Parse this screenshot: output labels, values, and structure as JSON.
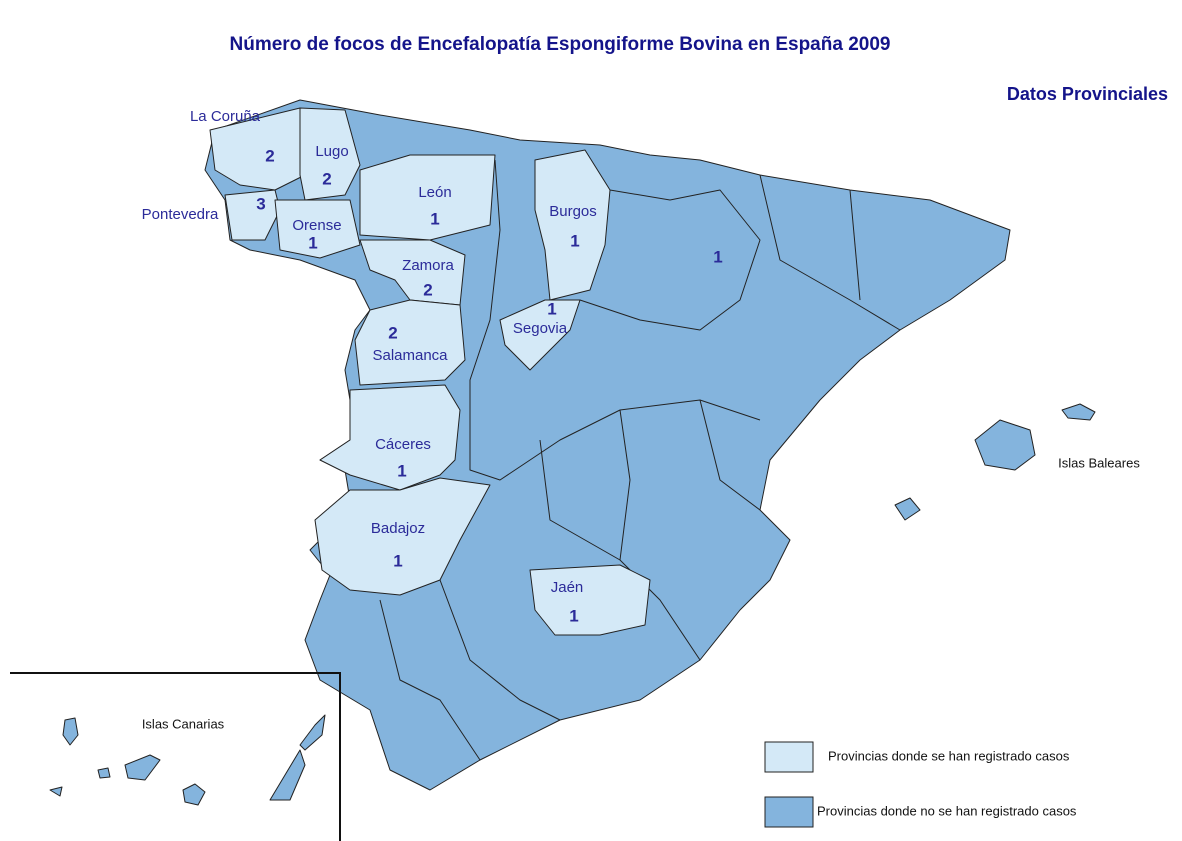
{
  "title": "Número de focos de Encefalopatía Espongiforme Bovina en España 2009",
  "subtitle": "Datos Provinciales",
  "regions": [
    {
      "name": "La Coruña",
      "count": 2
    },
    {
      "name": "Lugo",
      "count": 2
    },
    {
      "name": "Pontevedra",
      "count": 3
    },
    {
      "name": "Orense",
      "count": 1
    },
    {
      "name": "León",
      "count": 1
    },
    {
      "name": "Zamora",
      "count": 2
    },
    {
      "name": "Salamanca",
      "count": 2
    },
    {
      "name": "Burgos",
      "count": 1
    },
    {
      "name": "Segovia",
      "count": 1
    },
    {
      "name": "Cáceres",
      "count": 1
    },
    {
      "name": "Badajoz",
      "count": 1
    },
    {
      "name": "Jaén",
      "count": 1
    }
  ],
  "unnamed_counts": [
    1
  ],
  "island_labels": [
    "Islas Baleares",
    "Islas Canarias"
  ],
  "legend": [
    {
      "label": "Provincias donde se han registrado casos",
      "color": "#d4e9f7"
    },
    {
      "label": "Provincias donde no se han registrado casos",
      "color": "#84b4dd"
    }
  ]
}
